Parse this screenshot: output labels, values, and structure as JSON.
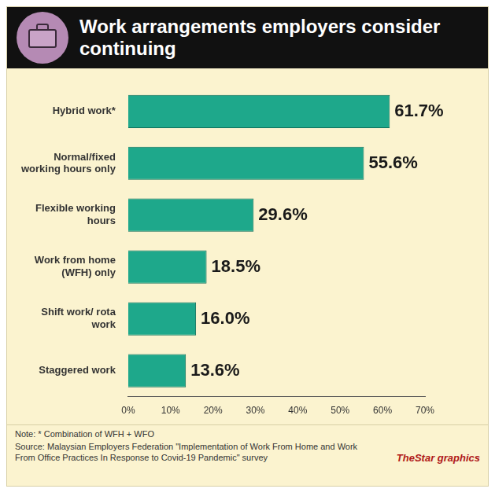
{
  "chart_data": {
    "type": "bar",
    "title": "Work arrangements employers consider continuing",
    "orientation": "horizontal",
    "categories": [
      "Hybrid work*",
      "Normal/fixed working hours only",
      "Flexible working hours",
      "Work from home (WFH) only",
      "Shift work/ rota work",
      "Staggered work"
    ],
    "values": [
      61.7,
      55.6,
      29.6,
      18.5,
      16.0,
      13.6
    ],
    "value_labels": [
      "61.7%",
      "55.6%",
      "29.6%",
      "18.5%",
      "16.0%",
      "13.6%"
    ],
    "data_labels": true,
    "color": "#1ea88b",
    "xlim": [
      0,
      70
    ],
    "xticks": [
      {
        "value": 0,
        "label": "0%"
      },
      {
        "value": 10,
        "label": "10%"
      },
      {
        "value": 20,
        "label": "20%"
      },
      {
        "value": 30,
        "label": "30%"
      },
      {
        "value": 40,
        "label": "40%"
      },
      {
        "value": 50,
        "label": "50%"
      },
      {
        "value": 60,
        "label": "60%"
      },
      {
        "value": 70,
        "label": "70%"
      }
    ],
    "grid": false,
    "annotations": [
      "Note: * Combination of WFH + WFO",
      "Source: Malaysian Employers Federation \"Implementation of Work From Home and Work From Office Practices In Response to Covid-19 Pandemic\" survey",
      "TheStar graphics"
    ]
  }
}
